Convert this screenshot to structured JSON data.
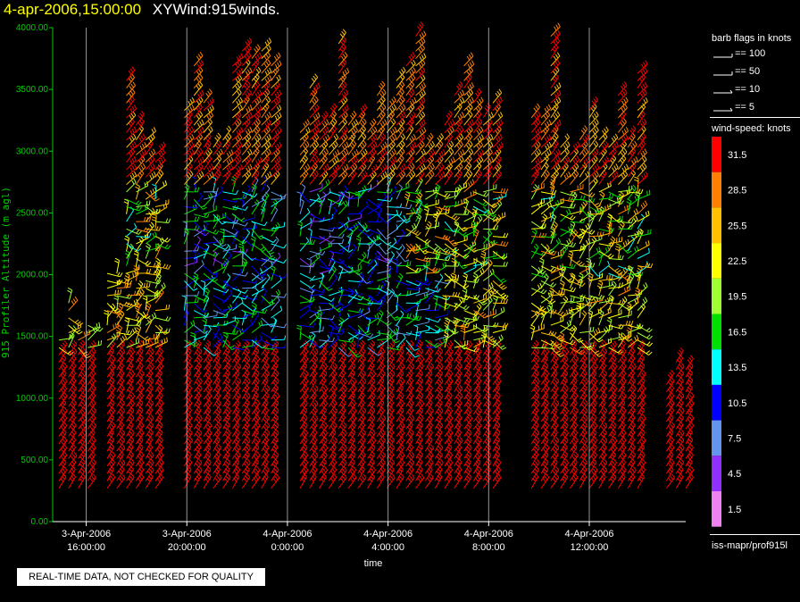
{
  "title": {
    "date": "4-apr-2006,15:00:00",
    "name": "XYWind:915winds."
  },
  "notice": "REAL-TIME DATA, NOT CHECKED FOR QUALITY",
  "footer_path": "iss-mapr/prof915l",
  "colors": {
    "background": "#000000",
    "axis": "#00cc00",
    "title_date": "#ffff00"
  },
  "chart_data": {
    "type": "wind-barbs",
    "xlabel": "time",
    "ylabel": "915 Profiler Altitude (m agl)",
    "ylim": [
      0,
      4000
    ],
    "y_ticks": [
      "0.00",
      "500.00",
      "1000.00",
      "1500.00",
      "2000.00",
      "2500.00",
      "3000.00",
      "3500.00",
      "4000.00"
    ],
    "x_range_hours": [
      "2006-04-03 14:40",
      "2006-04-04 15:50"
    ],
    "x_ticks": [
      {
        "date": "3-Apr-2006",
        "time": "16:00:00",
        "t": "2006-04-03 16:00"
      },
      {
        "date": "3-Apr-2006",
        "time": "20:00:00",
        "t": "2006-04-03 20:00"
      },
      {
        "date": "4-Apr-2006",
        "time": "0:00:00",
        "t": "2006-04-04 00:00"
      },
      {
        "date": "4-Apr-2006",
        "time": "4:00:00",
        "t": "2006-04-04 04:00"
      },
      {
        "date": "4-Apr-2006",
        "time": "8:00:00",
        "t": "2006-04-04 08:00"
      },
      {
        "date": "4-Apr-2006",
        "time": "12:00:00",
        "t": "2006-04-04 12:00"
      }
    ],
    "gridlines": "vertical at x ticks",
    "barb_legend": {
      "title": "barb flags in knots",
      "entries": [
        "== 100",
        "== 50",
        "== 10",
        "== 5"
      ]
    },
    "speed_legend": {
      "title": "wind-speed: knots",
      "unit": "knots",
      "bins": [
        {
          "label": "31.5",
          "color": "#ff0000"
        },
        {
          "label": "28.5",
          "color": "#ff8000"
        },
        {
          "label": "25.5",
          "color": "#ffc000"
        },
        {
          "label": "22.5",
          "color": "#ffff00"
        },
        {
          "label": "19.5",
          "color": "#a0ff30"
        },
        {
          "label": "16.5",
          "color": "#00e000"
        },
        {
          "label": "13.5",
          "color": "#00ffff"
        },
        {
          "label": "10.5",
          "color": "#0000ff"
        },
        {
          "label": "7.5",
          "color": "#6495ed"
        },
        {
          "label": "4.5",
          "color": "#9030ff"
        },
        {
          "label": "1.5",
          "color": "#ee82ee"
        }
      ]
    }
  }
}
